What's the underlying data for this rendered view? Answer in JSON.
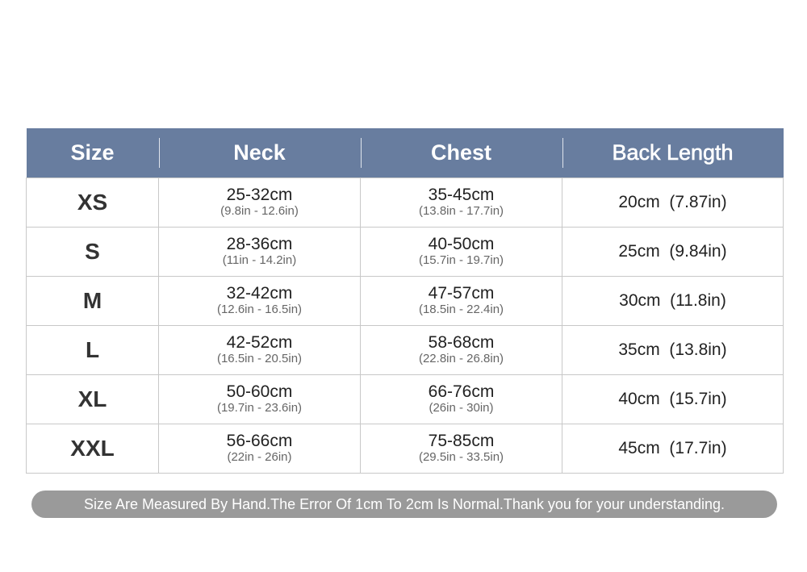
{
  "headers": [
    "Size",
    "Neck",
    "Chest",
    "Back Length"
  ],
  "rows": [
    {
      "size": "XS",
      "neck_cm": "25-32cm",
      "neck_in": "(9.8in - 12.6in)",
      "chest_cm": "35-45cm",
      "chest_in": "(13.8in - 17.7in)",
      "back": "20cm  (7.87in)"
    },
    {
      "size": "S",
      "neck_cm": "28-36cm",
      "neck_in": "(11in - 14.2in)",
      "chest_cm": "40-50cm",
      "chest_in": "(15.7in - 19.7in)",
      "back": "25cm  (9.84in)"
    },
    {
      "size": "M",
      "neck_cm": "32-42cm",
      "neck_in": "(12.6in - 16.5in)",
      "chest_cm": "47-57cm",
      "chest_in": "(18.5in - 22.4in)",
      "back": "30cm  (11.8in)"
    },
    {
      "size": "L",
      "neck_cm": "42-52cm",
      "neck_in": "(16.5in - 20.5in)",
      "chest_cm": "58-68cm",
      "chest_in": "(22.8in - 26.8in)",
      "back": "35cm  (13.8in)"
    },
    {
      "size": "XL",
      "neck_cm": "50-60cm",
      "neck_in": "(19.7in - 23.6in)",
      "chest_cm": "66-76cm",
      "chest_in": "(26in - 30in)",
      "back": "40cm  (15.7in)"
    },
    {
      "size": "XXL",
      "neck_cm": "56-66cm",
      "neck_in": "(22in - 26in)",
      "chest_cm": "75-85cm",
      "chest_in": "(29.5in - 33.5in)",
      "back": "45cm  (17.7in)"
    }
  ],
  "note": "Size Are Measured By Hand.The Error Of 1cm To 2cm Is Normal.Thank you for your understanding.",
  "colors": {
    "header_bg": "#687d9f",
    "note_bg": "#9a9a9a"
  }
}
